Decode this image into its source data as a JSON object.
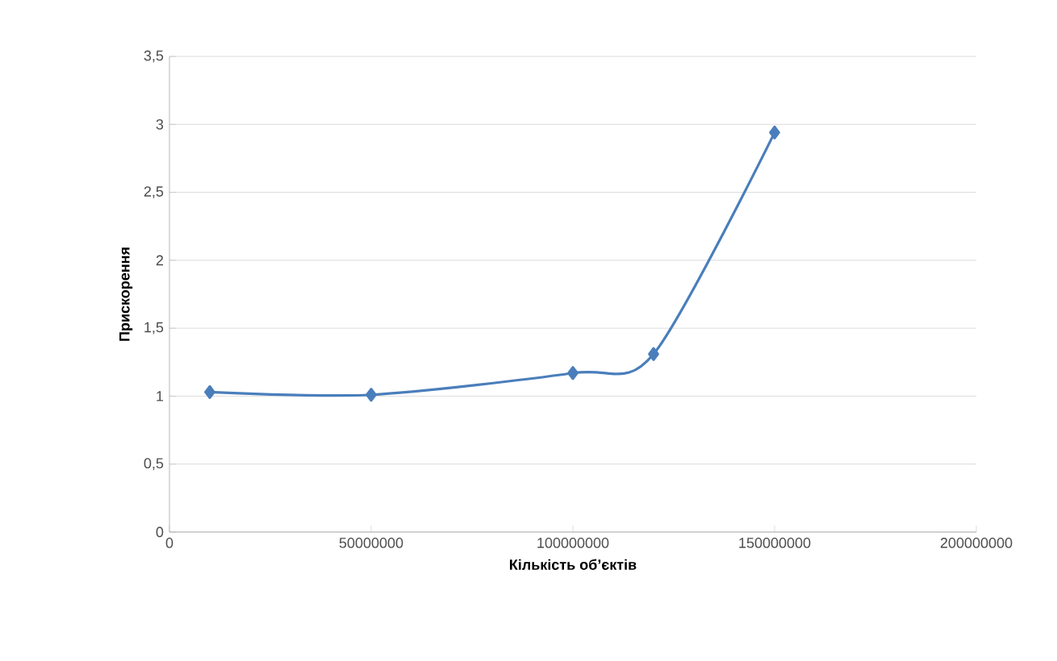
{
  "chart_data": {
    "type": "line",
    "xlabel": "Кількість об’єктів",
    "ylabel": "Прискорення",
    "x": [
      10000000,
      50000000,
      100000000,
      120000000,
      150000000
    ],
    "values": [
      1.03,
      1.01,
      1.17,
      1.31,
      2.94
    ],
    "color": "#4a7ebb",
    "marker": "diamond",
    "grid": "y",
    "xlim": [
      0,
      200000000
    ],
    "xticks": [
      0,
      50000000,
      100000000,
      150000000,
      200000000
    ],
    "ylim": [
      0,
      3.5
    ],
    "yticks": [
      0,
      {
        "value": 0.5,
        "label": "0,5"
      },
      1,
      {
        "value": 1.5,
        "label": "1,5"
      },
      2,
      {
        "value": 2.5,
        "label": "2,5"
      },
      3,
      {
        "value": 3.5,
        "label": "3,5"
      }
    ]
  }
}
